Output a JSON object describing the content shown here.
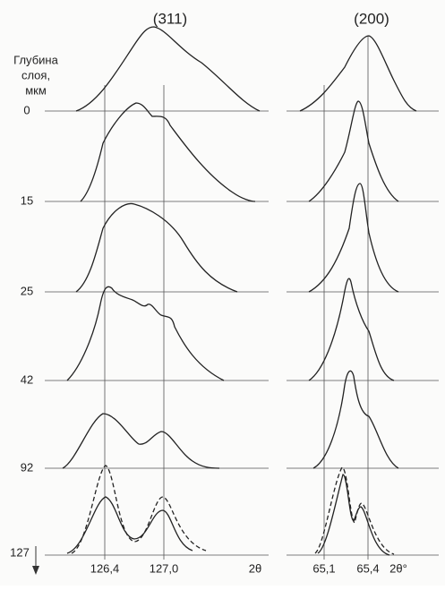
{
  "panels": [
    {
      "title": "(311)",
      "x_ticks": [
        "126,4",
        "127,0"
      ],
      "x_axis_label": "2θ"
    },
    {
      "title": "(200)",
      "x_ticks": [
        "65,1",
        "65,4"
      ],
      "x_axis_label": "2θ°"
    }
  ],
  "depth_axis": {
    "label_lines": [
      "Глубина",
      "слоя,",
      "мкм"
    ],
    "levels": [
      0,
      15,
      25,
      42,
      92,
      127
    ]
  }
}
